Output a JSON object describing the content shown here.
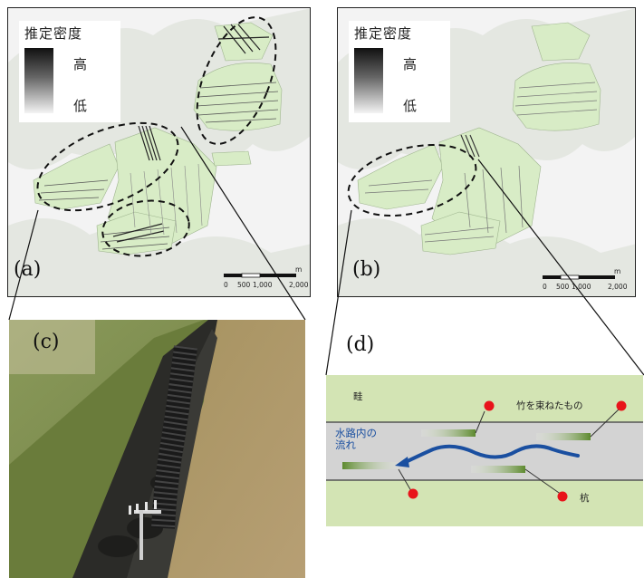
{
  "legend": {
    "title": "推定密度",
    "high": "高",
    "low": "低"
  },
  "panels": {
    "a": {
      "label": "(a)"
    },
    "b": {
      "label": "(b)"
    },
    "c": {
      "label": "(c)"
    },
    "d": {
      "label": "(d)"
    }
  },
  "scalebar": {
    "ticks": [
      "0",
      "500",
      "1,000",
      "2,000"
    ],
    "unit": "m"
  },
  "diagram": {
    "ridge_label": "畦",
    "bundle_label": "竹を束ねたもの",
    "flow_label_line1": "水路内の",
    "flow_label_line2": "流れ",
    "stake_label": "杭"
  },
  "colors": {
    "field_green": "#d8ecc6",
    "canal_gray": "#d3d3d3",
    "ridge_green": "#d3e4b4",
    "stake_red": "#e8141a",
    "flow_blue": "#1a4fa0"
  },
  "icons": {
    "stake": "red-circle-icon",
    "bundle": "bamboo-bundle-icon",
    "flow": "wavy-arrow-icon"
  }
}
